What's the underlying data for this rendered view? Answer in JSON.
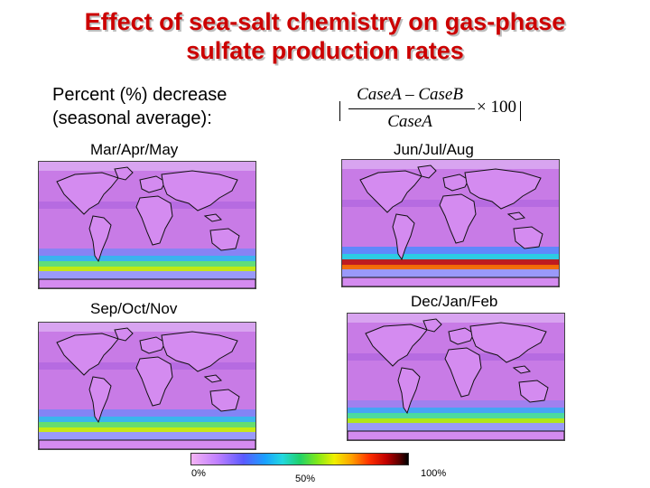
{
  "slide": {
    "title_line1": "Effect of sea-salt chemistry on gas-phase",
    "title_line2": "sulfate production rates",
    "subtitle_line1": "Percent (%) decrease",
    "subtitle_line2": "(seasonal average):",
    "formula": {
      "numerator": "CaseA – CaseB",
      "denominator": "CaseA",
      "multiplier": "× 100"
    },
    "title_color": "#cc0000"
  },
  "maps": [
    {
      "id": "mam",
      "season": "Mar/Apr/May",
      "southern_ocean_intensity": 0.55
    },
    {
      "id": "jja",
      "season": "Jun/Jul/Aug",
      "southern_ocean_intensity": 0.9
    },
    {
      "id": "son",
      "season": "Sep/Oct/Nov",
      "southern_ocean_intensity": 0.6
    },
    {
      "id": "djf",
      "season": "Dec/Jan/Feb",
      "southern_ocean_intensity": 0.35
    }
  ],
  "colorbar": {
    "min_label": "0%",
    "mid_label": "50%",
    "max_label": "100%"
  }
}
